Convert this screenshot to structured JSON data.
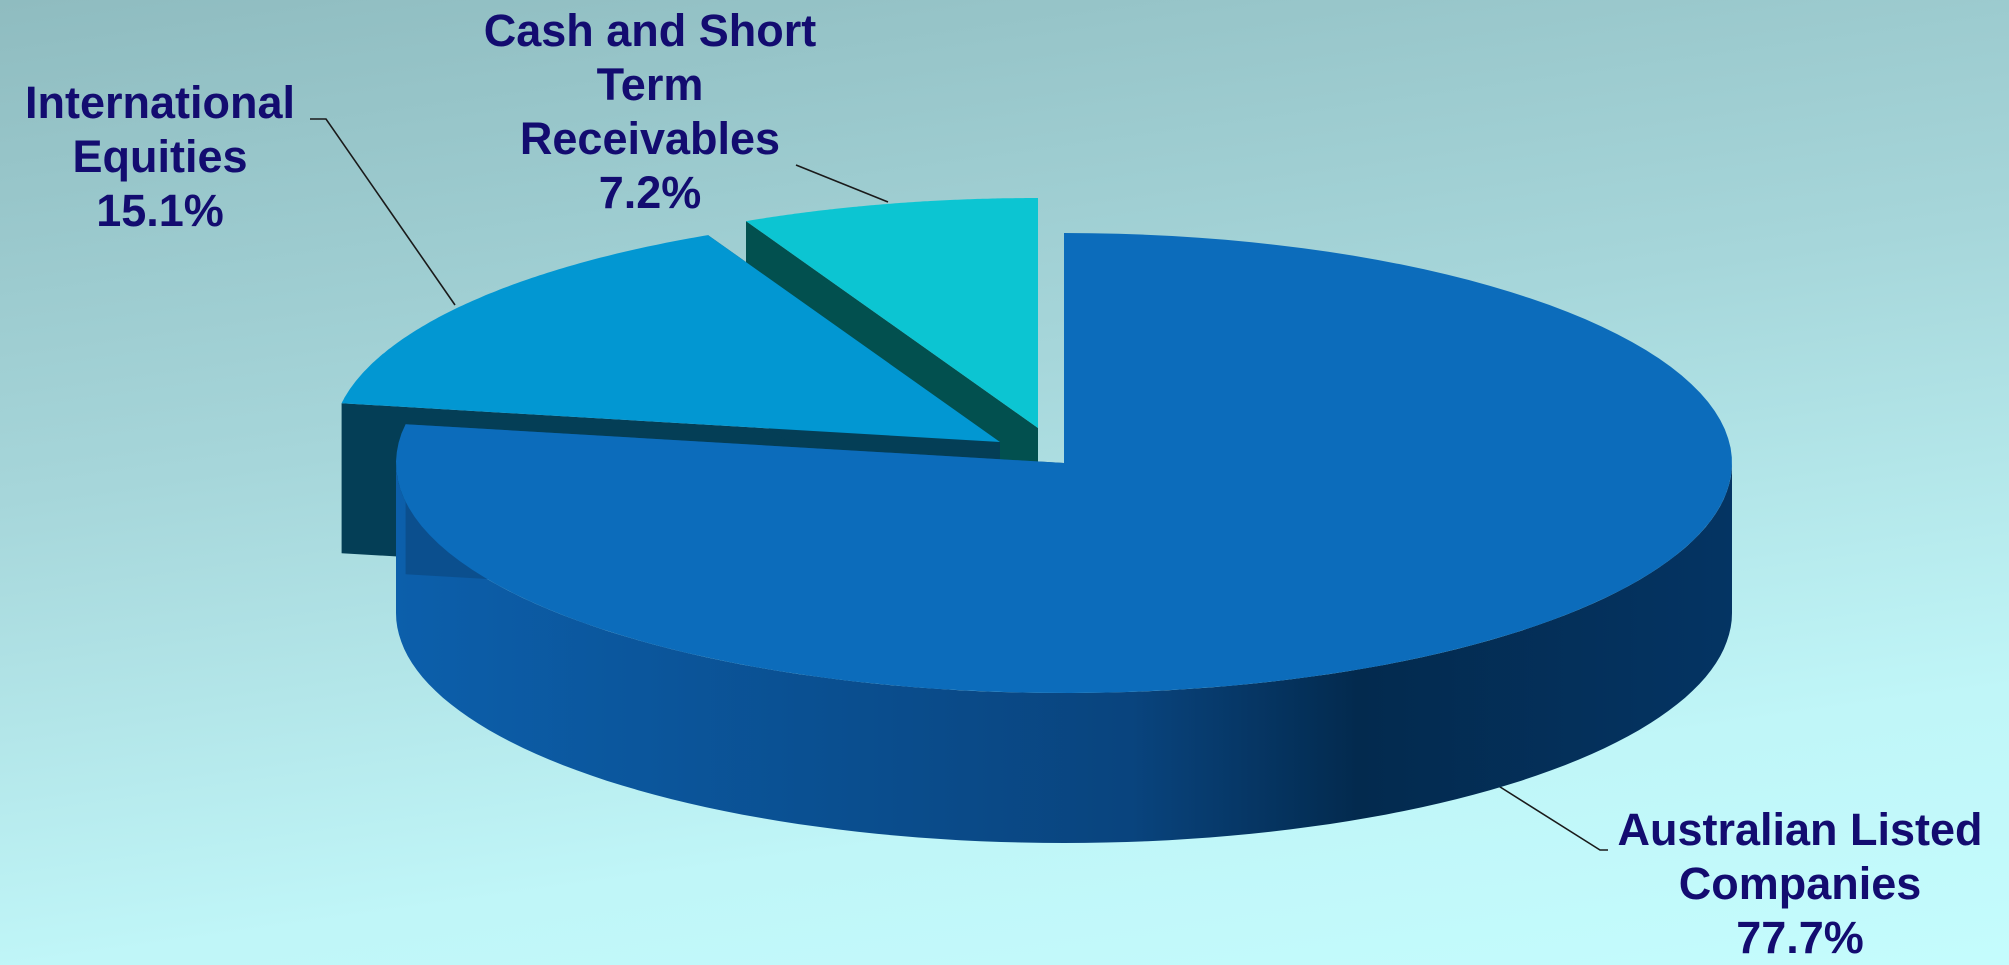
{
  "chart_data": {
    "type": "pie",
    "style": "3d-exploded",
    "slices": [
      {
        "label_lines": [
          "Australian Listed",
          "Companies"
        ],
        "percent_text": "77.7%",
        "value": 77.7,
        "color": "#0c6cbb"
      },
      {
        "label_lines": [
          "International",
          "Equities"
        ],
        "percent_text": "15.1%",
        "value": 15.1,
        "color": "#0297d2"
      },
      {
        "label_lines": [
          "Cash and Short",
          "Term",
          "Receivables"
        ],
        "percent_text": "7.2%",
        "value": 7.2,
        "color": "#0cc5d2"
      }
    ],
    "colors": {
      "australian_side_light": "#0c5fab",
      "australian_side_dark": "#032a4e",
      "international_side": "#043e56",
      "cash_side": "#02504f",
      "label_text": "#130c70",
      "leader_line": "#1a1a1a"
    }
  }
}
